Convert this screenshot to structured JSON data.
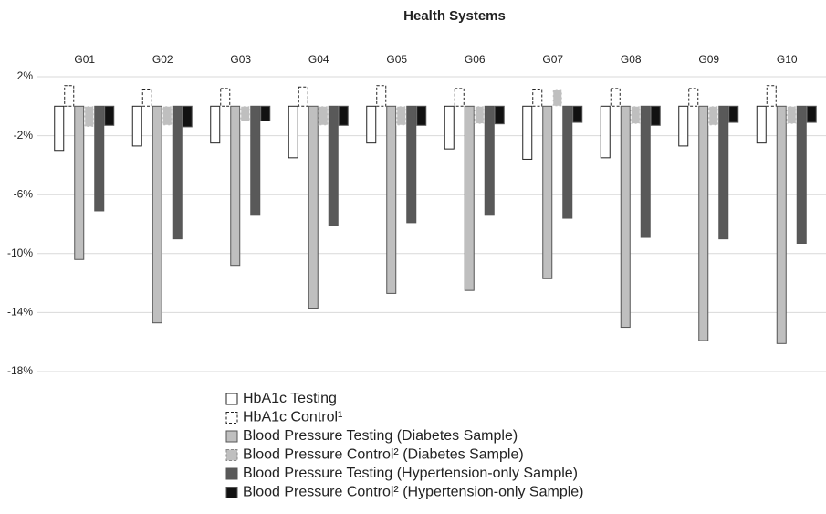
{
  "chart_data": {
    "type": "bar",
    "title": "Health Systems",
    "categories": [
      "G01",
      "G02",
      "G03",
      "G04",
      "G05",
      "G06",
      "G07",
      "G08",
      "G09",
      "G10"
    ],
    "series": [
      {
        "name": "HbA1c Testing",
        "color": "#ffffff",
        "dashed": false,
        "values": [
          -3.0,
          -2.7,
          -2.5,
          -3.5,
          -2.5,
          -2.9,
          -3.6,
          -3.5,
          -2.7,
          -2.5
        ]
      },
      {
        "name": "HbA1c Control¹",
        "color": "#ffffff",
        "dashed": true,
        "values": [
          1.4,
          1.1,
          1.2,
          1.3,
          1.4,
          1.2,
          1.1,
          1.2,
          1.2,
          1.4
        ]
      },
      {
        "name": "Blood Pressure Testing (Diabetes Sample)",
        "color": "#bfbfbf",
        "dashed": false,
        "values": [
          -10.4,
          -14.7,
          -10.8,
          -13.7,
          -12.7,
          -12.5,
          -11.7,
          -15.0,
          -15.9,
          -16.1
        ]
      },
      {
        "name": "Blood Pressure Control² (Diabetes Sample)",
        "color": "#bfbfbf",
        "dashed": true,
        "values": [
          -1.4,
          -1.3,
          -1.0,
          -1.3,
          -1.3,
          -1.2,
          1.1,
          -1.2,
          -1.3,
          -1.2
        ]
      },
      {
        "name": "Blood Pressure Testing (Hypertension-only Sample)",
        "color": "#595959",
        "dashed": false,
        "values": [
          -7.1,
          -9.0,
          -7.4,
          -8.1,
          -7.9,
          -7.4,
          -7.6,
          -8.9,
          -9.0,
          -9.3
        ]
      },
      {
        "name": "Blood Pressure Control² (Hypertension-only Sample)",
        "color": "#111111",
        "dashed": false,
        "values": [
          -1.3,
          -1.4,
          -1.0,
          -1.3,
          -1.3,
          -1.2,
          -1.1,
          -1.3,
          -1.1,
          -1.1
        ]
      }
    ],
    "ylim": [
      -18,
      2
    ],
    "yticks": [
      {
        "value": 2,
        "label": "2%"
      },
      {
        "value": -2,
        "label": "-2%"
      },
      {
        "value": -6,
        "label": "-6%"
      },
      {
        "value": -10,
        "label": "-10%"
      },
      {
        "value": -14,
        "label": "-14%"
      },
      {
        "value": -18,
        "label": "-18%"
      }
    ],
    "grid": true
  }
}
